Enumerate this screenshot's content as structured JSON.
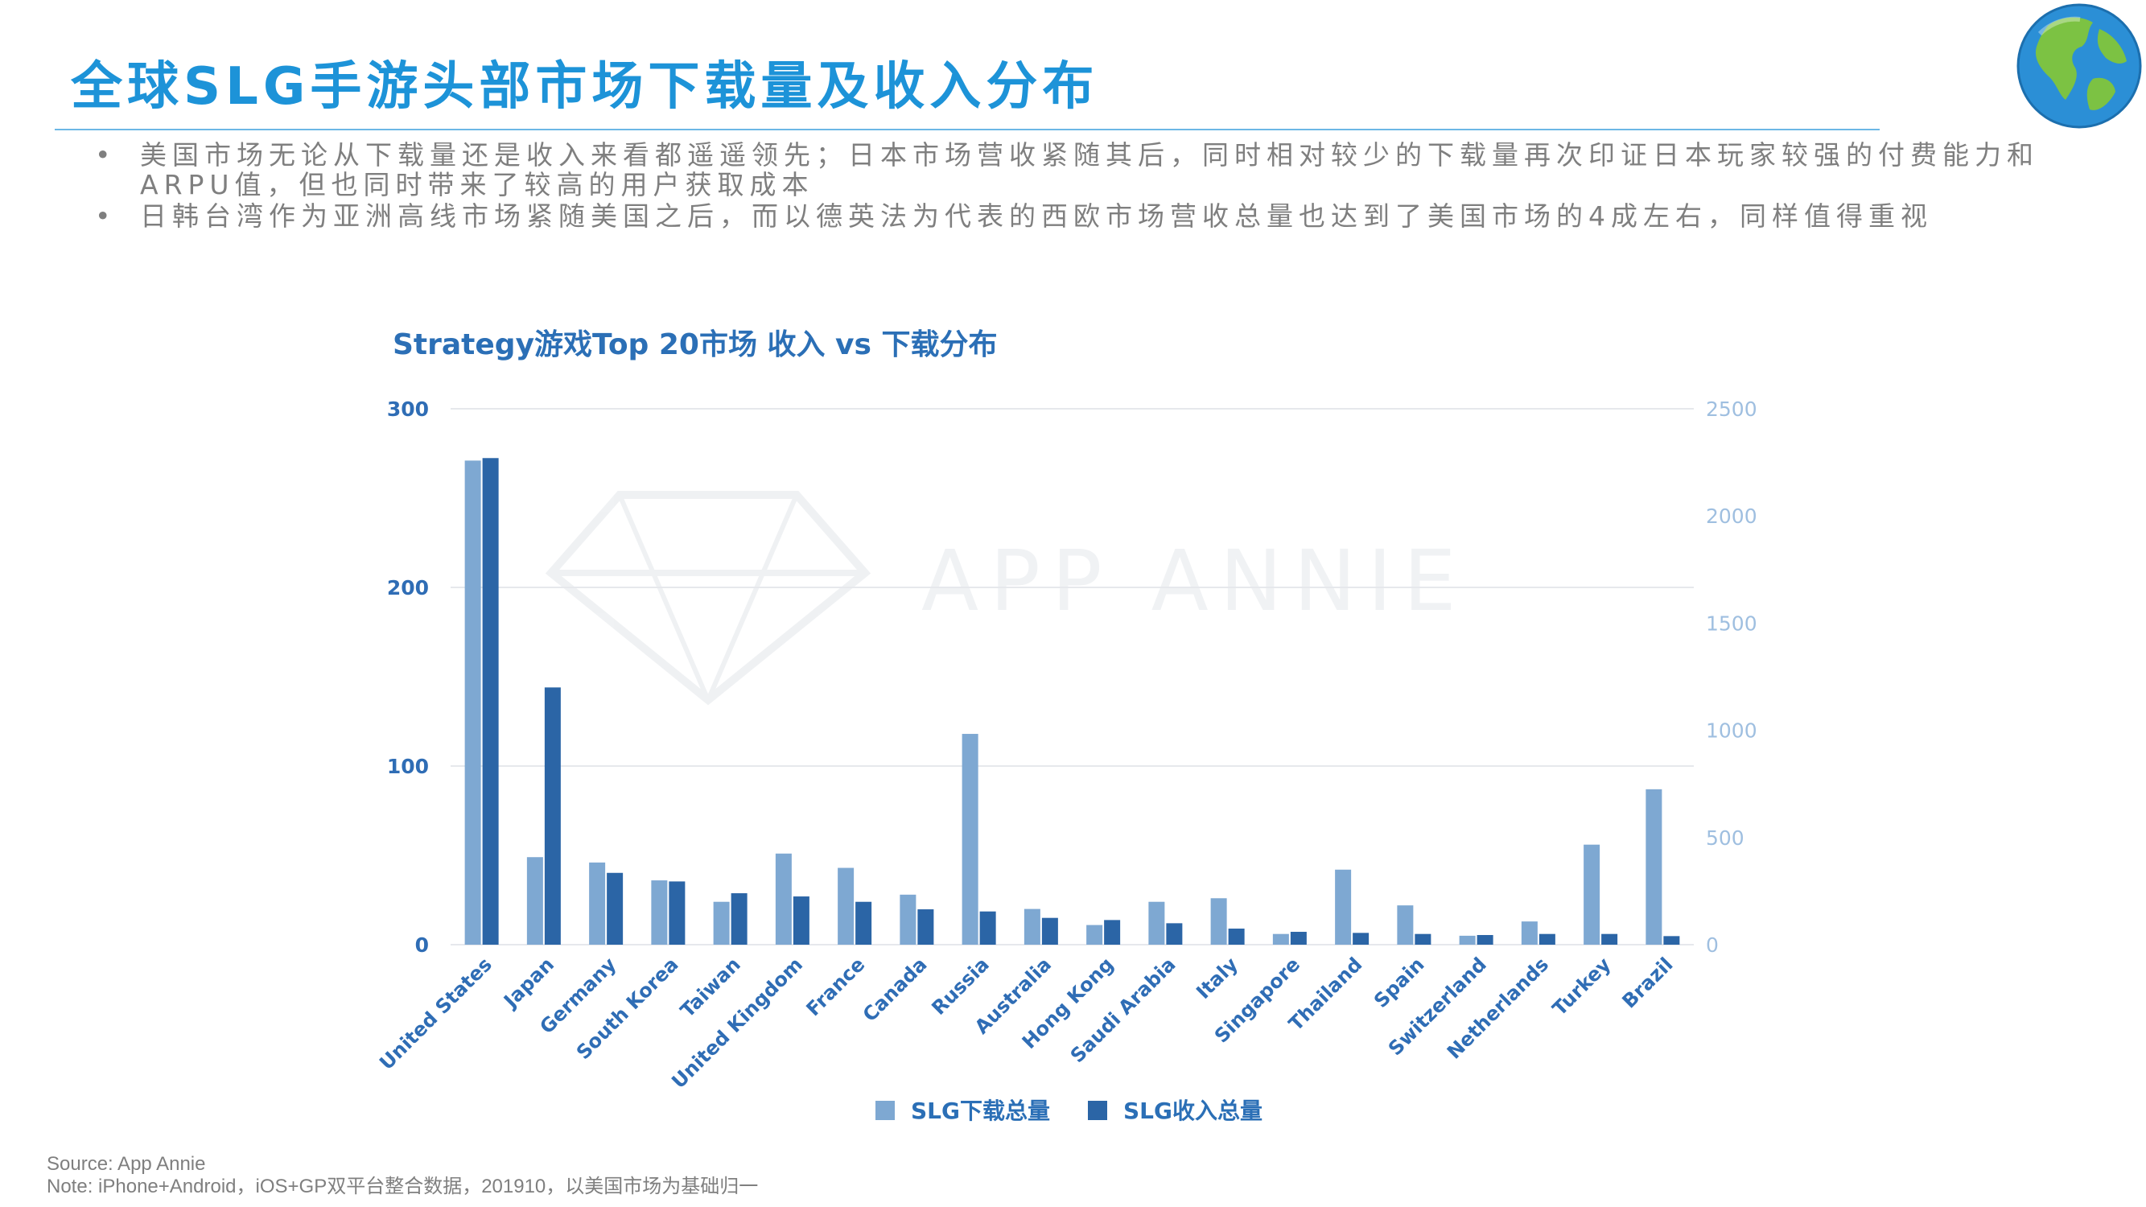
{
  "slide": {
    "title": "全球SLG手游头部市场下载量及收入分布",
    "bullets": [
      "美国市场无论从下载量还是收入来看都遥遥领先；日本市场营收紧随其后，同时相对较少的下载量再次印证日本玩家较强的付费能力和ARPU值，但也同时带来了较高的用户获取成本",
      "日韩台湾作为亚洲高线市场紧随美国之后，而以德英法为代表的西欧市场营收总量也达到了美国市场的4成左右，同样值得重视"
    ],
    "bullet_marker": "•",
    "source": "Source: App Annie",
    "note": "Note: iPhone+Android，iOS+GP双平台整合数据，201910，以美国市场为基础归一"
  },
  "icons": {
    "globe": "globe-icon",
    "watermark": "diamond-watermark-icon"
  },
  "watermark_text": "APP ANNIE",
  "colors": {
    "title": "#1d93d8",
    "rule": "#6cb7e6",
    "body_text": "#7f7f7f",
    "chart_title": "#2b6fb6",
    "downloads": "#7ea8d2",
    "revenue": "#2b65a6",
    "left_axis": "#2f6db5",
    "right_axis": "#9fbfe0",
    "grid": "#e6e8ec"
  },
  "chart_data": {
    "type": "bar",
    "title": "Strategy游戏Top 20市场 收入 vs 下载分布",
    "categories": [
      "United States",
      "Japan",
      "Germany",
      "South Korea",
      "Taiwan",
      "United Kingdom",
      "France",
      "Canada",
      "Russia",
      "Australia",
      "Hong Kong",
      "Saudi Arabia",
      "Italy",
      "Singapore",
      "Thailand",
      "Spain",
      "Switzerland",
      "Netherlands",
      "Turkey",
      "Brazil"
    ],
    "series": [
      {
        "name": "SLG下载总量",
        "axis": "left",
        "values": [
          271,
          49,
          46,
          36,
          24,
          51,
          43,
          28,
          118,
          20,
          11,
          24,
          26,
          6,
          42,
          22,
          5,
          13,
          56,
          87
        ]
      },
      {
        "name": "SLG收入总量",
        "axis": "right",
        "values": [
          2270,
          1200,
          335,
          295,
          240,
          225,
          200,
          165,
          155,
          125,
          115,
          100,
          75,
          60,
          55,
          50,
          45,
          50,
          50,
          40
        ]
      }
    ],
    "left_axis": {
      "ylim": [
        0,
        300
      ],
      "ticks": [
        "0",
        "100",
        "200",
        "300"
      ]
    },
    "right_axis": {
      "ylim": [
        0,
        2500
      ],
      "ticks": [
        "0",
        "500",
        "1000",
        "1500",
        "2000",
        "2500"
      ]
    },
    "grid": true,
    "legend_position": "bottom-center"
  }
}
